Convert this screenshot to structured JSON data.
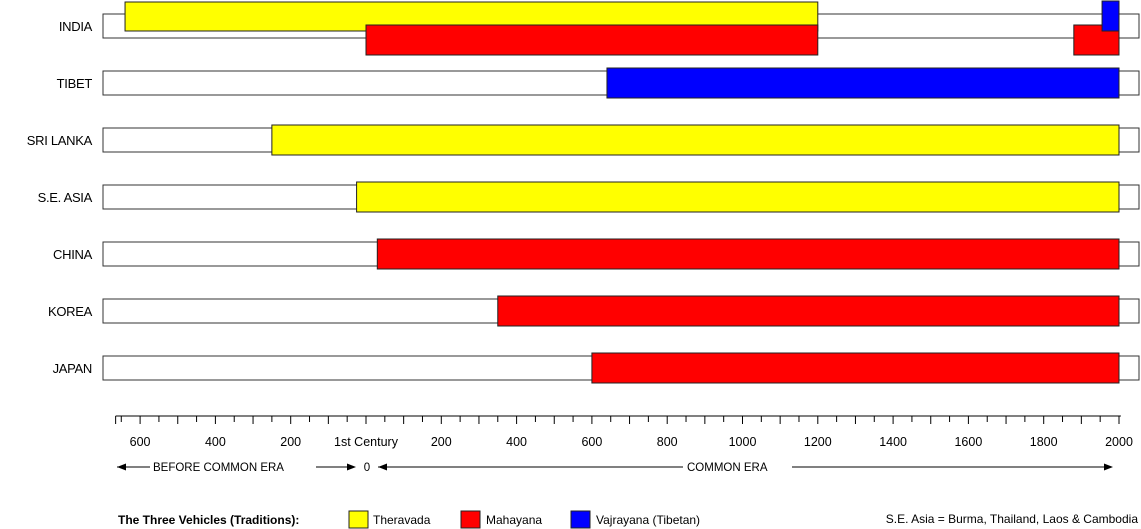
{
  "chart_data": {
    "type": "timeline-bar",
    "x_axis": {
      "range": [
        -700,
        2000
      ],
      "ticks": [
        {
          "label": "600",
          "value": -600
        },
        {
          "label": "400",
          "value": -400
        },
        {
          "label": "200",
          "value": -200
        },
        {
          "label": "1st Century",
          "value": 0
        },
        {
          "label": "200",
          "value": 200
        },
        {
          "label": "400",
          "value": 400
        },
        {
          "label": "600",
          "value": 600
        },
        {
          "label": "800",
          "value": 800
        },
        {
          "label": "1000",
          "value": 1000
        },
        {
          "label": "1200",
          "value": 1200
        },
        {
          "label": "1400",
          "value": 1400
        },
        {
          "label": "1600",
          "value": 1600
        },
        {
          "label": "1800",
          "value": 1800
        },
        {
          "label": "2000",
          "value": 2000
        }
      ],
      "minor_step": 100
    },
    "eras": {
      "bce": "BEFORE COMMON ERA",
      "zero": "0",
      "ce": "COMMON ERA"
    },
    "rows": [
      {
        "name": "INDIA",
        "spans": [
          {
            "tradition": "theravada",
            "start": -640,
            "end": 1200
          },
          {
            "tradition": "mahayana",
            "start": 0,
            "end": 1200
          },
          {
            "tradition": "mahayana",
            "start": 1880,
            "end": 2000
          },
          {
            "tradition": "vajrayana",
            "start": 1955,
            "end": 2000
          }
        ]
      },
      {
        "name": "TIBET",
        "spans": [
          {
            "tradition": "vajrayana",
            "start": 640,
            "end": 2000
          }
        ]
      },
      {
        "name": "SRI LANKA",
        "spans": [
          {
            "tradition": "theravada",
            "start": -250,
            "end": 2000
          }
        ]
      },
      {
        "name": "S.E. ASIA",
        "spans": [
          {
            "tradition": "theravada",
            "start": -25,
            "end": 2000
          }
        ]
      },
      {
        "name": "CHINA",
        "spans": [
          {
            "tradition": "mahayana",
            "start": 30,
            "end": 2000
          }
        ]
      },
      {
        "name": "KOREA",
        "spans": [
          {
            "tradition": "mahayana",
            "start": 350,
            "end": 2000
          }
        ]
      },
      {
        "name": "JAPAN",
        "spans": [
          {
            "tradition": "mahayana",
            "start": 600,
            "end": 2000
          }
        ]
      }
    ],
    "legend": {
      "title": "The Three Vehicles (Traditions):",
      "items": [
        {
          "key": "theravada",
          "label": "Theravada",
          "color": "#ffff00"
        },
        {
          "key": "mahayana",
          "label": "Mahayana",
          "color": "#ff0000"
        },
        {
          "key": "vajrayana",
          "label": "Vajrayana (Tibetan)",
          "color": "#0000ff"
        }
      ],
      "placement": "bottom-left"
    },
    "note": "S.E. Asia = Burma, Thailand, Laos & Cambodia"
  }
}
